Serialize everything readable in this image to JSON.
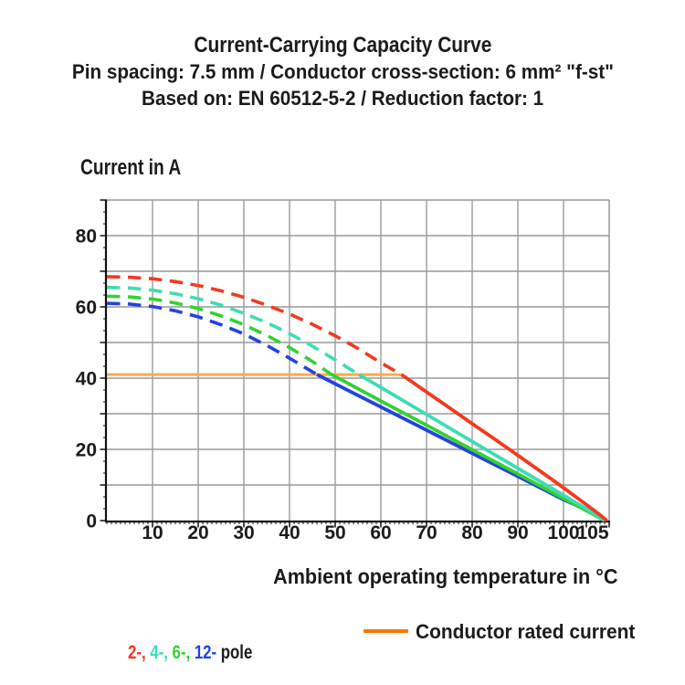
{
  "header": {
    "title": "Current-Carrying Capacity Curve",
    "subtitle1": "Pin spacing: 7.5 mm / Conductor cross-section: 6 mm² \"f-st\"",
    "subtitle2": "Based on: EN 60512-5-2 / Reduction factor: 1"
  },
  "axes": {
    "y_title": "Current in A",
    "x_title": "Ambient operating temperature in °C"
  },
  "legend": {
    "pole_parts": [
      {
        "text": "2-, ",
        "color": "#f23a20"
      },
      {
        "text": "4-, ",
        "color": "#3edcb4"
      },
      {
        "text": "6-, ",
        "color": "#32d232"
      },
      {
        "text": "12- ",
        "color": "#2343df"
      },
      {
        "text": "pole",
        "color": "#1b1b1b"
      }
    ],
    "rated_label": "Conductor rated current",
    "rated_swatch_color": "#f57a00"
  },
  "chart_data": {
    "type": "line",
    "title": "Current-Carrying Capacity Curve",
    "xlabel": "Ambient operating temperature in °C",
    "ylabel": "Current in A",
    "xlim": [
      0,
      110
    ],
    "ylim": [
      0,
      90
    ],
    "grid": true,
    "grid_color": "#999999",
    "axis_color": "#111111",
    "x_gridlines": [
      10,
      20,
      30,
      40,
      50,
      60,
      70,
      80,
      90,
      100
    ],
    "y_gridlines": [
      10,
      20,
      30,
      40,
      50,
      60,
      70,
      80
    ],
    "xticks": [
      10,
      20,
      30,
      40,
      50,
      60,
      70,
      80,
      90,
      100,
      105
    ],
    "yticks": [
      0,
      20,
      40,
      60,
      80
    ],
    "x_minor_step": 1,
    "y_minor_step": 3.333,
    "x_last_label_offset": 7,
    "rated_current": {
      "label": "Conductor rated current",
      "value": 41,
      "x_range": [
        0,
        64.5
      ],
      "color": "#fcab4c"
    },
    "series": [
      {
        "name": "2-pole",
        "color": "#f23a20",
        "dashed_above_rated": [
          [
            0,
            68.5
          ],
          [
            5,
            68.3
          ],
          [
            10,
            67.9
          ],
          [
            15,
            67.1
          ],
          [
            20,
            66.0
          ],
          [
            25,
            64.5
          ],
          [
            30,
            62.7
          ],
          [
            35,
            60.5
          ],
          [
            40,
            58.0
          ],
          [
            45,
            55.1
          ],
          [
            50,
            51.9
          ],
          [
            55,
            48.3
          ],
          [
            60,
            44.3
          ],
          [
            64.5,
            41
          ]
        ],
        "solid_below_rated": [
          [
            64.5,
            41
          ],
          [
            70,
            36.1
          ],
          [
            75,
            31.7
          ],
          [
            80,
            27.2
          ],
          [
            85,
            22.8
          ],
          [
            90,
            18.3
          ],
          [
            95,
            13.8
          ],
          [
            100,
            9.2
          ],
          [
            105,
            4.5
          ],
          [
            108,
            1.6
          ],
          [
            109.5,
            0
          ]
        ]
      },
      {
        "name": "4-pole",
        "color": "#3edcb4",
        "dashed_above_rated": [
          [
            0,
            65.5
          ],
          [
            5,
            65.3
          ],
          [
            10,
            64.7
          ],
          [
            15,
            63.7
          ],
          [
            20,
            62.3
          ],
          [
            25,
            60.5
          ],
          [
            30,
            58.2
          ],
          [
            35,
            55.6
          ],
          [
            40,
            52.5
          ],
          [
            45,
            49.0
          ],
          [
            50,
            45.1
          ],
          [
            55.2,
            41
          ]
        ],
        "solid_below_rated": [
          [
            55.2,
            41
          ],
          [
            60,
            37.4
          ],
          [
            70,
            29.8
          ],
          [
            80,
            22.2
          ],
          [
            90,
            14.7
          ],
          [
            100,
            7.1
          ],
          [
            105,
            3.3
          ],
          [
            109,
            0
          ]
        ]
      },
      {
        "name": "6-pole",
        "color": "#32d232",
        "dashed_above_rated": [
          [
            0,
            63
          ],
          [
            5,
            62.8
          ],
          [
            10,
            62.2
          ],
          [
            15,
            61.1
          ],
          [
            20,
            59.5
          ],
          [
            25,
            57.5
          ],
          [
            30,
            55.0
          ],
          [
            35,
            52.0
          ],
          [
            40,
            48.6
          ],
          [
            45,
            44.7
          ],
          [
            49.2,
            41
          ]
        ],
        "solid_below_rated": [
          [
            49.2,
            41
          ],
          [
            60,
            33.6
          ],
          [
            70,
            26.8
          ],
          [
            80,
            19.9
          ],
          [
            90,
            13.1
          ],
          [
            100,
            6.2
          ],
          [
            105,
            2.8
          ],
          [
            109,
            0
          ]
        ]
      },
      {
        "name": "12-pole",
        "color": "#2343df",
        "dashed_above_rated": [
          [
            0,
            61
          ],
          [
            5,
            60.8
          ],
          [
            10,
            60.1
          ],
          [
            15,
            58.9
          ],
          [
            20,
            57.2
          ],
          [
            25,
            55.0
          ],
          [
            30,
            52.4
          ],
          [
            35,
            49.2
          ],
          [
            40,
            45.6
          ],
          [
            46,
            41
          ]
        ],
        "solid_below_rated": [
          [
            46,
            41
          ],
          [
            60,
            31.9
          ],
          [
            70,
            25.4
          ],
          [
            80,
            18.9
          ],
          [
            90,
            12.4
          ],
          [
            100,
            5.9
          ],
          [
            105,
            3.0
          ],
          [
            109,
            0
          ]
        ]
      }
    ]
  }
}
